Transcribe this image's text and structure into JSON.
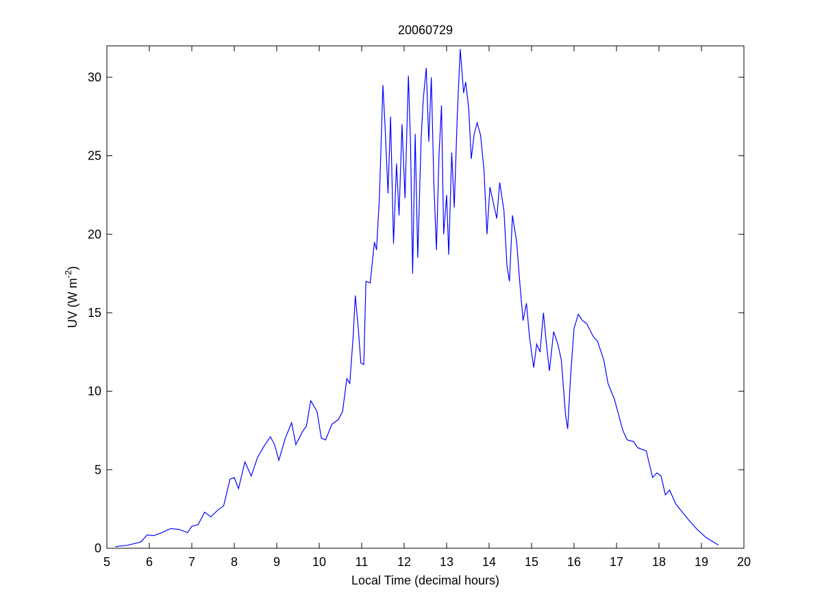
{
  "chart_data": {
    "type": "line",
    "title": "20060729",
    "xlabel": "Local Time (decimal hours)",
    "ylabel": [
      "UV (W m",
      "-2",
      ")"
    ],
    "color": "#0000ff",
    "xlim": [
      5,
      20
    ],
    "ylim": [
      0,
      32
    ],
    "xticks": [
      5,
      6,
      7,
      8,
      9,
      10,
      11,
      12,
      13,
      14,
      15,
      16,
      17,
      18,
      19,
      20
    ],
    "yticks": [
      0,
      5,
      10,
      15,
      20,
      25,
      30
    ],
    "x": [
      5.2,
      5.5,
      5.8,
      5.95,
      6.1,
      6.3,
      6.5,
      6.7,
      6.9,
      7.0,
      7.15,
      7.3,
      7.45,
      7.6,
      7.75,
      7.9,
      8.0,
      8.1,
      8.25,
      8.4,
      8.55,
      8.7,
      8.85,
      8.95,
      9.05,
      9.2,
      9.35,
      9.45,
      9.6,
      9.7,
      9.8,
      9.95,
      10.05,
      10.15,
      10.3,
      10.45,
      10.55,
      10.65,
      10.72,
      10.8,
      10.85,
      10.92,
      10.98,
      11.05,
      11.1,
      11.2,
      11.3,
      11.35,
      11.42,
      11.5,
      11.55,
      11.62,
      11.68,
      11.75,
      11.82,
      11.88,
      11.95,
      12.02,
      12.1,
      12.15,
      12.2,
      12.26,
      12.32,
      12.4,
      12.45,
      12.52,
      12.58,
      12.64,
      12.7,
      12.76,
      12.82,
      12.88,
      12.93,
      13.0,
      13.05,
      13.12,
      13.18,
      13.25,
      13.32,
      13.4,
      13.45,
      13.52,
      13.58,
      13.65,
      13.72,
      13.8,
      13.88,
      13.95,
      14.02,
      14.1,
      14.18,
      14.25,
      14.35,
      14.42,
      14.48,
      14.55,
      14.65,
      14.72,
      14.8,
      14.88,
      14.95,
      15.05,
      15.12,
      15.2,
      15.28,
      15.35,
      15.42,
      15.52,
      15.62,
      15.7,
      15.8,
      15.85,
      15.92,
      16.0,
      16.1,
      16.2,
      16.3,
      16.45,
      16.55,
      16.7,
      16.8,
      16.95,
      17.05,
      17.15,
      17.25,
      17.4,
      17.5,
      17.7,
      17.85,
      17.95,
      18.05,
      18.15,
      18.25,
      18.4,
      18.55,
      18.7,
      18.9,
      19.1,
      19.4
    ],
    "values": [
      0.1,
      0.2,
      0.4,
      0.85,
      0.8,
      1.0,
      1.25,
      1.2,
      1.0,
      1.4,
      1.5,
      2.3,
      2.0,
      2.4,
      2.7,
      4.4,
      4.5,
      3.8,
      5.5,
      4.6,
      5.8,
      6.5,
      7.1,
      6.6,
      5.6,
      7.0,
      8.0,
      6.6,
      7.4,
      7.8,
      9.4,
      8.7,
      7.0,
      6.9,
      7.9,
      8.2,
      8.7,
      10.8,
      10.5,
      13.5,
      16.1,
      14.0,
      11.8,
      11.7,
      17.0,
      16.9,
      19.5,
      19.0,
      22.5,
      29.5,
      26.9,
      22.6,
      27.5,
      19.4,
      24.5,
      21.2,
      27.0,
      22.3,
      30.1,
      25.8,
      17.5,
      26.4,
      18.5,
      26.1,
      28.6,
      30.6,
      25.9,
      30.0,
      23.2,
      19.0,
      25.0,
      28.2,
      20.0,
      22.5,
      18.7,
      25.2,
      21.7,
      27.5,
      31.8,
      29.0,
      29.7,
      28.0,
      24.8,
      26.4,
      27.1,
      26.3,
      24.1,
      20.0,
      23.0,
      22.0,
      21.0,
      23.3,
      21.5,
      18.0,
      17.0,
      21.2,
      19.5,
      17.0,
      14.5,
      15.6,
      13.5,
      11.5,
      13.0,
      12.5,
      15.0,
      13.0,
      11.3,
      13.8,
      13.0,
      12.0,
      8.5,
      7.6,
      11.0,
      14.0,
      14.9,
      14.5,
      14.3,
      13.5,
      13.2,
      12.0,
      10.5,
      9.5,
      8.5,
      7.5,
      6.9,
      6.8,
      6.4,
      6.2,
      4.5,
      4.8,
      4.6,
      3.4,
      3.7,
      2.8,
      2.3,
      1.8,
      1.2,
      0.7,
      0.2
    ]
  }
}
